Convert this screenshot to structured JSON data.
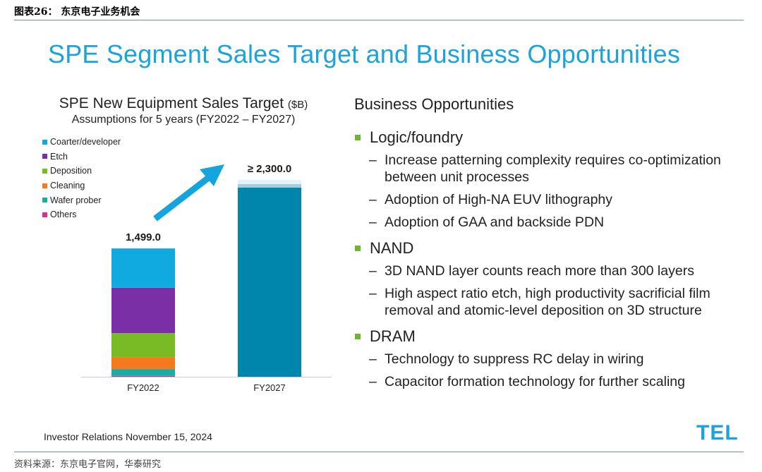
{
  "caption": "图表26：  东京电子业务机会",
  "source": "资料来源：东京电子官网，华泰研究",
  "slide_title": "SPE Segment Sales Target and Business Opportunities",
  "chart_data": {
    "type": "bar",
    "title": "SPE New Equipment Sales Target",
    "title_unit": "($B)",
    "subtitle": "Assumptions for 5 years (FY2022 – FY2027)",
    "categories": [
      "FY2022",
      "FY2027"
    ],
    "totals": [
      1499.0,
      2300.0
    ],
    "total_labels": [
      "1,499.0",
      "≥ 2,300.0"
    ],
    "legend": [
      {
        "name": "Coarter/developer",
        "color": "#10a9e0"
      },
      {
        "name": "Etch",
        "color": "#7a2fa6"
      },
      {
        "name": "Deposition",
        "color": "#78bb24"
      },
      {
        "name": "Cleaning",
        "color": "#f4791f"
      },
      {
        "name": "Wafer prober",
        "color": "#1aaca6"
      },
      {
        "name": "Others",
        "color": "#d82f8e"
      }
    ],
    "stacks": [
      {
        "category": "FY2022",
        "segments": [
          {
            "name": "Others",
            "value": 10,
            "color": "#d82f8e"
          },
          {
            "name": "Wafer prober",
            "value": 80,
            "color": "#1aaca6"
          },
          {
            "name": "Cleaning",
            "value": 140,
            "color": "#f4791f"
          },
          {
            "name": "Deposition",
            "value": 280,
            "color": "#78bb24"
          },
          {
            "name": "Etch",
            "value": 530,
            "color": "#7a2fa6"
          },
          {
            "name": "Coarter/developer",
            "value": 459,
            "color": "#10a9e0"
          }
        ]
      },
      {
        "category": "FY2027",
        "segments": [
          {
            "name": "Total",
            "value": 2300,
            "color": "#0086ad"
          }
        ]
      }
    ],
    "ylim": [
      0,
      2300
    ],
    "xlabel": "",
    "ylabel": ""
  },
  "opportunities": {
    "title": "Business Opportunities",
    "groups": [
      {
        "name": "Logic/foundry",
        "items": [
          "Increase patterning complexity requires co-optimization between unit processes",
          "Adoption of High-NA EUV lithography",
          "Adoption of GAA and backside PDN"
        ]
      },
      {
        "name": "NAND",
        "items": [
          "3D NAND layer counts reach more than 300 layers",
          "High aspect ratio etch, high productivity sacrificial film removal and atomic-level deposition on 3D structure"
        ]
      },
      {
        "name": "DRAM",
        "items": [
          "Technology to suppress RC delay in wiring",
          "Capacitor formation technology for further scaling"
        ]
      }
    ]
  },
  "footer_note": "Investor Relations November 15, 2024",
  "logo_text": "TEL",
  "dash": "–"
}
